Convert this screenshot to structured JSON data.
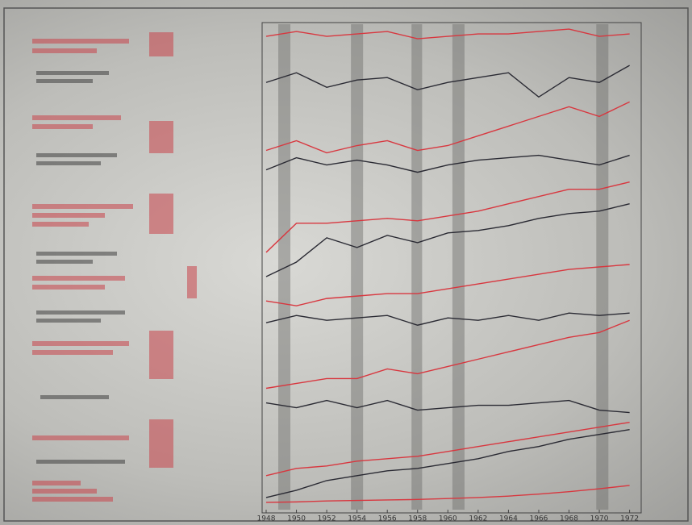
{
  "chart_data": {
    "type": "line",
    "x": [
      1948,
      1950,
      1952,
      1954,
      1956,
      1958,
      1960,
      1962,
      1964,
      1966,
      1968,
      1970,
      1972
    ],
    "xlim": [
      1948,
      1972.5
    ],
    "xticks": [
      1948,
      1950,
      1952,
      1954,
      1956,
      1958,
      1960,
      1962,
      1964,
      1966,
      1968,
      1970,
      1972
    ],
    "ylim": [
      0,
      100
    ],
    "shaded_periods": [
      [
        1948.8,
        1949.6
      ],
      [
        1953.6,
        1954.4
      ],
      [
        1957.6,
        1958.3
      ],
      [
        1960.3,
        1961.1
      ],
      [
        1969.8,
        1970.6
      ]
    ],
    "series": [
      {
        "color": "#d8373f",
        "values": [
          97.5,
          98.5,
          97.5,
          98,
          98.5,
          97,
          97.5,
          98,
          98,
          98.5,
          99,
          97.5,
          98
        ]
      },
      {
        "color": "#2a2a33",
        "values": [
          88,
          90,
          87,
          88.5,
          89,
          86.5,
          88,
          89,
          90,
          85,
          89,
          88,
          91.5
        ]
      },
      {
        "color": "#d8373f",
        "values": [
          74,
          76,
          73.5,
          75,
          76,
          74,
          75,
          77,
          79,
          81,
          83,
          81,
          84
        ]
      },
      {
        "color": "#2a2a33",
        "values": [
          70,
          72.5,
          71,
          72,
          71,
          69.5,
          71,
          72,
          72.5,
          73,
          72,
          71,
          73
        ]
      },
      {
        "color": "#d8373f",
        "values": [
          53,
          59,
          59,
          59.5,
          60,
          59.5,
          60.5,
          61.5,
          63,
          64.5,
          66,
          66,
          67.5
        ]
      },
      {
        "color": "#2a2a33",
        "values": [
          48,
          51,
          56,
          54,
          56.5,
          55,
          57,
          57.5,
          58.5,
          60,
          61,
          61.5,
          63
        ]
      },
      {
        "color": "#d8373f",
        "values": [
          43,
          42,
          43.5,
          44,
          44.5,
          44.5,
          45.5,
          46.5,
          47.5,
          48.5,
          49.5,
          50,
          50.5
        ]
      },
      {
        "color": "#2a2a33",
        "values": [
          38.5,
          40,
          39,
          39.5,
          40,
          38,
          39.5,
          39,
          40,
          39,
          40.5,
          40,
          40.5
        ]
      },
      {
        "color": "#d8373f",
        "values": [
          25,
          26,
          27,
          27,
          29,
          28,
          29.5,
          31,
          32.5,
          34,
          35.5,
          36.5,
          39
        ]
      },
      {
        "color": "#2a2a33",
        "values": [
          22,
          21,
          22.5,
          21,
          22.5,
          20.5,
          21,
          21.5,
          21.5,
          22,
          22.5,
          20.5,
          20
        ]
      },
      {
        "color": "#d8373f",
        "values": [
          7,
          8.5,
          9,
          10,
          10.5,
          11,
          12,
          13,
          14,
          15,
          16,
          17,
          18
        ]
      },
      {
        "color": "#2a2a33",
        "values": [
          2.5,
          4,
          6,
          7,
          8,
          8.5,
          9.5,
          10.5,
          12,
          13,
          14.5,
          15.5,
          16.5
        ]
      },
      {
        "color": "#d8373f",
        "values": [
          1.5,
          1.6,
          1.8,
          1.9,
          2,
          2.1,
          2.3,
          2.5,
          2.8,
          3.2,
          3.7,
          4.3,
          5
        ]
      }
    ]
  }
}
